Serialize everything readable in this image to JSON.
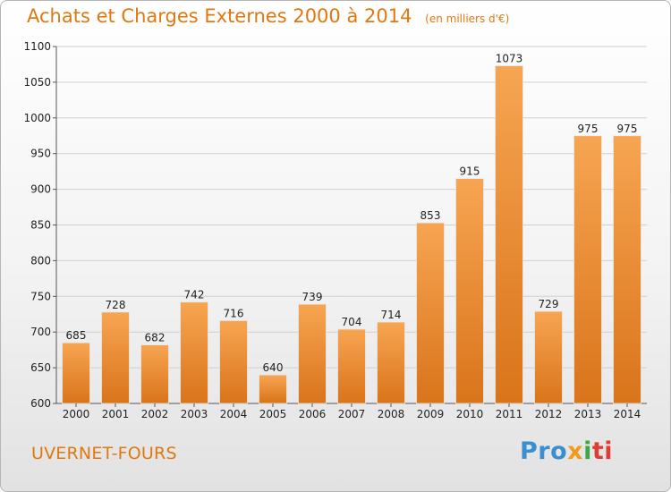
{
  "chart_data": {
    "type": "bar",
    "title": "Achats et Charges Externes 2000 à 2014",
    "subtitle": "(en milliers d'€)",
    "categories": [
      "2000",
      "2001",
      "2002",
      "2003",
      "2004",
      "2005",
      "2006",
      "2007",
      "2008",
      "2009",
      "2010",
      "2011",
      "2012",
      "2013",
      "2014"
    ],
    "values": [
      685,
      728,
      682,
      742,
      716,
      640,
      739,
      704,
      714,
      853,
      915,
      1073,
      729,
      975,
      975
    ],
    "ylim": [
      600,
      1100
    ],
    "yticks": [
      600,
      650,
      700,
      750,
      800,
      850,
      900,
      950,
      1000,
      1050,
      1100
    ],
    "xlabel": "",
    "ylabel": "",
    "grid": true
  },
  "footer": {
    "place": "UVERNET-FOURS",
    "logo": [
      "Pro",
      "x",
      "i",
      "ti"
    ]
  },
  "colors": {
    "accent": "#e07810",
    "bar_light": "#f7a552",
    "bar_dark": "#d9741a"
  }
}
